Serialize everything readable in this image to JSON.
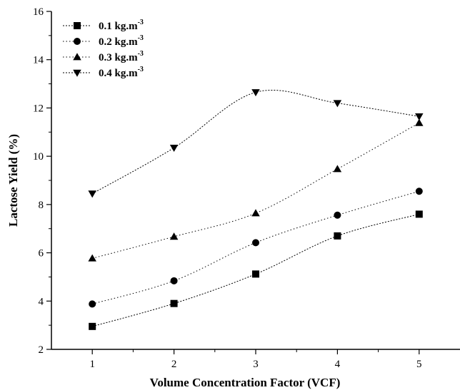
{
  "chart_data": {
    "type": "line",
    "title": "",
    "xlabel": "Volume Concentration Factor (VCF)",
    "ylabel": "Lactose Yield (%)",
    "xlim": [
      0.5,
      5.5
    ],
    "ylim": [
      2,
      16
    ],
    "x_ticks": [
      "1",
      "2",
      "3",
      "4",
      "5"
    ],
    "y_ticks": [
      "2",
      "4",
      "6",
      "8",
      "10",
      "12",
      "14",
      "16"
    ],
    "grid": false,
    "legend_position": "top-left",
    "x": [
      1,
      2,
      3,
      4,
      5
    ],
    "series": [
      {
        "name": "0.1 kg.m",
        "name_sup": "-3",
        "marker": "square",
        "values": [
          2.95,
          3.9,
          5.12,
          6.7,
          7.6
        ]
      },
      {
        "name": "0.2 kg.m",
        "name_sup": "-3",
        "marker": "circle",
        "values": [
          3.88,
          4.84,
          6.42,
          7.56,
          8.55
        ]
      },
      {
        "name": "0.3 kg.m",
        "name_sup": "-3",
        "marker": "triangle-up",
        "values": [
          5.77,
          6.67,
          7.64,
          9.47,
          11.38
        ]
      },
      {
        "name": "0.4 kg.m",
        "name_sup": "-3",
        "marker": "triangle-down",
        "values": [
          8.45,
          10.35,
          12.65,
          12.2,
          11.65
        ]
      }
    ]
  }
}
